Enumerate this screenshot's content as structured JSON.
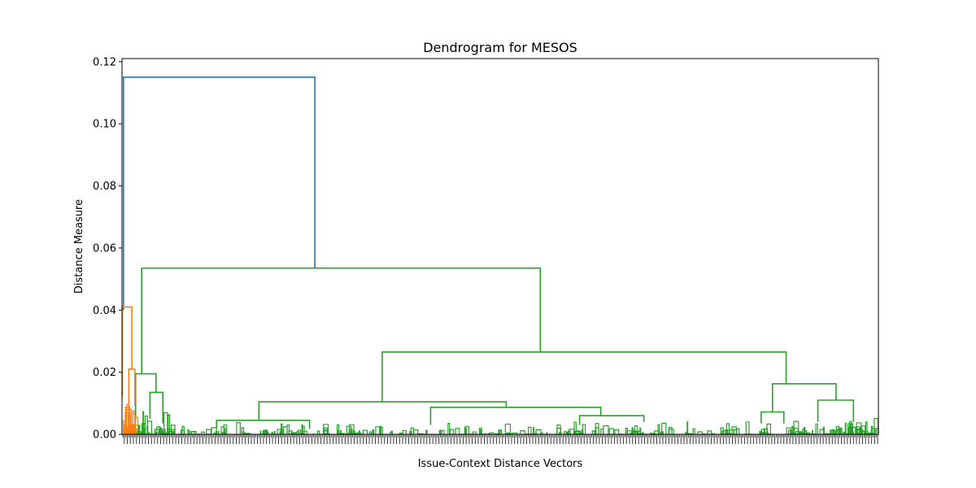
{
  "chart_data": {
    "type": "dendrogram",
    "title": "Dendrogram for MESOS",
    "xlabel": "Issue-Context Distance Vectors",
    "ylabel": "Distance Measure",
    "ylim": [
      0,
      0.121
    ],
    "yticks": [
      "0.00",
      "0.02",
      "0.04",
      "0.06",
      "0.08",
      "0.10",
      "0.12"
    ],
    "grid": false,
    "colors": {
      "root": "#1f77b4",
      "cluster_1": "#ff7f0e",
      "cluster_2": "#2ca02c"
    },
    "leaf_index_range": [
      0,
      1000
    ],
    "root_merge_height": 0.115,
    "links": [
      {
        "color": "root",
        "height": 0.115,
        "left_x": 2,
        "left_h": 0.04,
        "right_x": 255,
        "right_h": 0.0535
      },
      {
        "color": "cluster_2",
        "height": 0.0535,
        "left_x": 26,
        "left_h": 0.0195,
        "right_x": 553,
        "right_h": 0.0265
      },
      {
        "color": "cluster_2",
        "height": 0.0265,
        "left_x": 344,
        "left_h": 0.0105,
        "right_x": 878,
        "right_h": 0.0163
      },
      {
        "color": "cluster_2",
        "height": 0.0163,
        "left_x": 860,
        "left_h": 0.0072,
        "right_x": 944,
        "right_h": 0.011
      },
      {
        "color": "cluster_2",
        "height": 0.011,
        "left_x": 920,
        "left_h": 0.004,
        "right_x": 967,
        "right_h": 0.004
      },
      {
        "color": "cluster_2",
        "height": 0.0072,
        "left_x": 845,
        "left_h": 0.0035,
        "right_x": 875,
        "right_h": 0.0035
      },
      {
        "color": "cluster_2",
        "height": 0.0105,
        "left_x": 181,
        "left_h": 0.0045,
        "right_x": 508,
        "right_h": 0.0087
      },
      {
        "color": "cluster_2",
        "height": 0.0087,
        "left_x": 408,
        "left_h": 0.003,
        "right_x": 633,
        "right_h": 0.006
      },
      {
        "color": "cluster_2",
        "height": 0.0045,
        "left_x": 125,
        "left_h": 0.0018,
        "right_x": 248,
        "right_h": 0.0018
      },
      {
        "color": "cluster_2",
        "height": 0.006,
        "left_x": 605,
        "left_h": 0.003,
        "right_x": 690,
        "right_h": 0.004
      },
      {
        "color": "cluster_2",
        "height": 0.0195,
        "left_x": 18,
        "left_h": 0.0045,
        "right_x": 45,
        "right_h": 0.0135
      },
      {
        "color": "cluster_2",
        "height": 0.0135,
        "left_x": 37,
        "left_h": 0.005,
        "right_x": 54,
        "right_h": 0.0035
      },
      {
        "color": "cluster_1",
        "height": 0.041,
        "left_x": 0.5,
        "left_h": 0.012,
        "right_x": 13,
        "right_h": 0.021
      },
      {
        "color": "cluster_1",
        "height": 0.021,
        "left_x": 9,
        "left_h": 0.008,
        "right_x": 17,
        "right_h": 0.009
      },
      {
        "color": "cluster_1",
        "height": 0.008,
        "left_x": 6,
        "left_h": 0.002,
        "right_x": 12,
        "right_h": 0.003
      }
    ]
  }
}
